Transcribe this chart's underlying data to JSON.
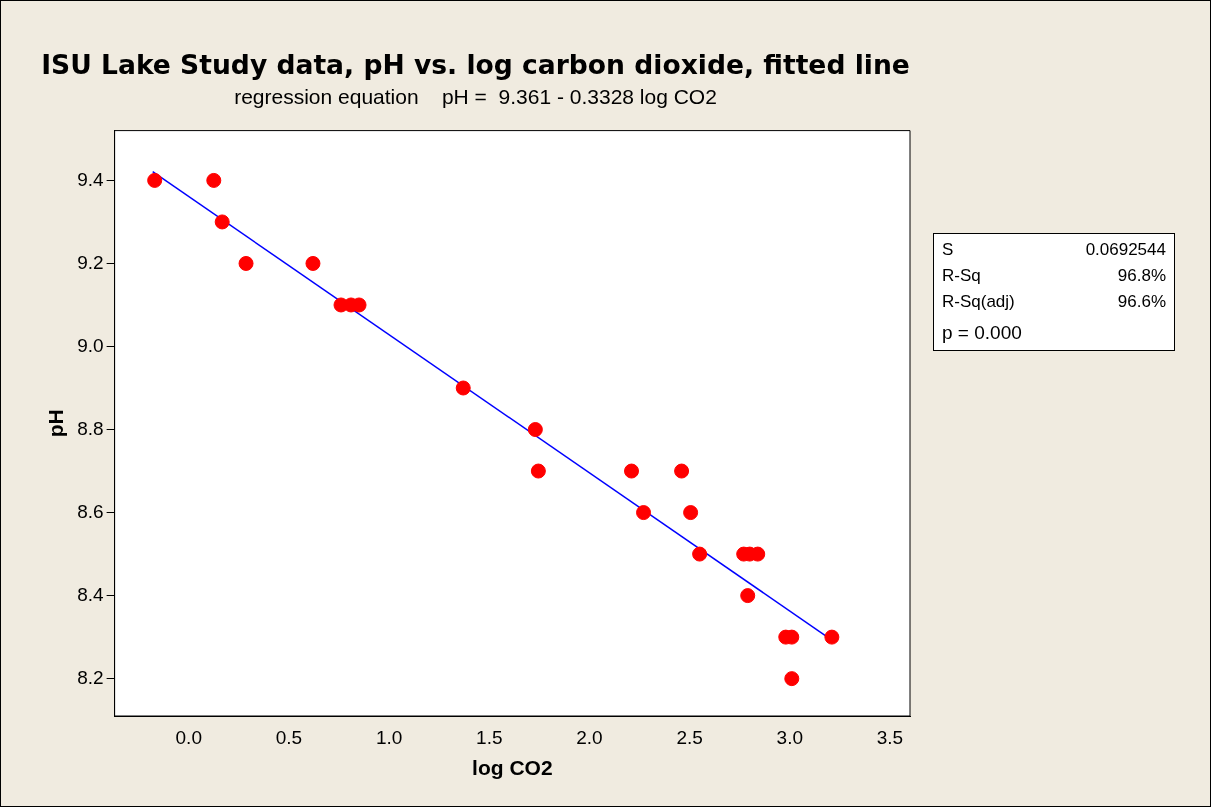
{
  "chart_data": {
    "type": "scatter",
    "title": "ISU Lake Study data, pH vs. log carbon dioxide, fitted line",
    "subtitle": "regression equation    pH =  9.361 - 0.3328 log CO2",
    "xlabel": "log CO2",
    "ylabel": "pH",
    "x": [
      -0.17,
      0.125,
      0.167,
      0.286,
      0.62,
      0.76,
      0.81,
      0.85,
      1.37,
      1.73,
      1.745,
      2.21,
      2.27,
      2.46,
      2.505,
      2.55,
      2.77,
      2.8,
      2.84,
      2.79,
      2.98,
      3.01,
      3.01,
      3.21
    ],
    "series": [
      {
        "color": "#ff0000",
        "marker": "circle",
        "values": [
          9.4,
          9.4,
          9.3,
          9.2,
          9.2,
          9.1,
          9.1,
          9.1,
          8.9,
          8.8,
          8.7,
          8.7,
          8.6,
          8.7,
          8.6,
          8.5,
          8.5,
          8.5,
          8.5,
          8.4,
          8.3,
          8.3,
          8.2,
          8.3
        ]
      },
      {
        "type": "line",
        "color": "#0000ff",
        "marker": "none",
        "x": [
          -0.18,
          3.21
        ],
        "values": [
          9.421,
          8.293
        ]
      }
    ],
    "xlim": [
      -0.37,
      3.6
    ],
    "ylim": [
      8.11,
      9.52
    ],
    "xticks": [
      {
        "value": 0,
        "label": "0.0"
      },
      0.5,
      {
        "value": 1,
        "label": "1.0"
      },
      1.5,
      {
        "value": 2,
        "label": "2.0"
      },
      2.5,
      {
        "value": 3,
        "label": "3.0"
      },
      3.5
    ],
    "yticks": [
      8.2,
      8.4,
      8.6,
      8.8,
      {
        "value": 9,
        "label": "9.0"
      },
      9.2,
      9.4
    ],
    "grid": false,
    "legend": false,
    "annotations": [
      "S",
      "0.0692544",
      "R-Sq",
      "96.8%",
      "R-Sq(adj)",
      "96.6%",
      "p = 0.000"
    ]
  }
}
